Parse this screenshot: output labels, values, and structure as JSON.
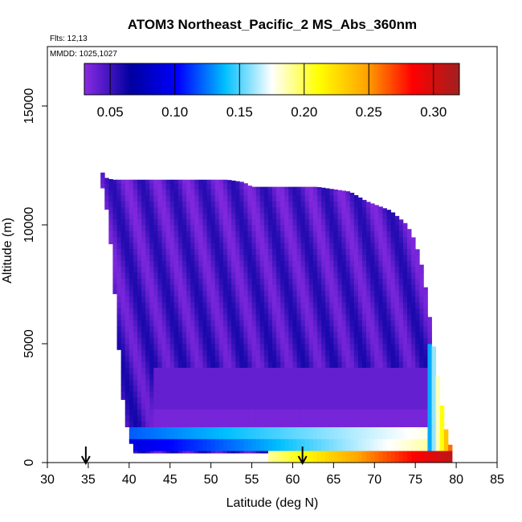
{
  "chart_data": {
    "type": "heatmap",
    "title": "ATOM3 Northeast_Pacific_2 MS_Abs_360nm",
    "notes": [
      "Flts: 12,13",
      "MMDD: 1025,1027"
    ],
    "xlabel": "Latitude (deg N)",
    "ylabel": "Altitude (m)",
    "xlim": [
      30,
      85
    ],
    "ylim": [
      0,
      17500
    ],
    "xticks": [
      "30",
      "35",
      "40",
      "45",
      "50",
      "55",
      "60",
      "65",
      "70",
      "75",
      "80",
      "85"
    ],
    "yticks": [
      "0",
      "5000",
      "10000",
      "15000"
    ],
    "colorbar": {
      "range": [
        0.03,
        0.32
      ],
      "ticks": [
        "0.05",
        "0.10",
        "0.15",
        "0.20",
        "0.25",
        "0.30"
      ],
      "colors": [
        "#8a2be2",
        "#0000a0",
        "#0000ff",
        "#00bfff",
        "#ffffff",
        "#ffff00",
        "#ffa500",
        "#ff0000",
        "#a02020"
      ]
    },
    "markers": [
      {
        "name": "arrow-1",
        "x": 34.7
      },
      {
        "name": "arrow-2",
        "x": 61.2
      }
    ],
    "curtain": {
      "lat_min": 39.5,
      "lat_max": 79.5,
      "lat_step": 0.5,
      "alt_step": 250,
      "top_profile": [
        [
          36.5,
          12400
        ],
        [
          37.0,
          12000
        ],
        [
          38.0,
          11900
        ],
        [
          43.0,
          11900
        ],
        [
          52.0,
          11900
        ],
        [
          54.0,
          11800
        ],
        [
          55.0,
          11600
        ],
        [
          63.0,
          11600
        ],
        [
          67.0,
          11400
        ],
        [
          69.0,
          11000
        ],
        [
          72.0,
          10600
        ],
        [
          74.0,
          10000
        ],
        [
          75.0,
          9300
        ],
        [
          76.0,
          8000
        ],
        [
          76.8,
          6000
        ],
        [
          77.2,
          5000
        ],
        [
          77.5,
          4300
        ],
        [
          78.0,
          3000
        ],
        [
          78.5,
          1800
        ],
        [
          79.0,
          1000
        ],
        [
          79.5,
          500
        ]
      ],
      "bottom_profile": [
        [
          36.5,
          12000
        ],
        [
          37.5,
          10200
        ],
        [
          38.0,
          8200
        ],
        [
          38.5,
          6000
        ],
        [
          39.0,
          3500
        ],
        [
          39.5,
          1800
        ],
        [
          40.0,
          1200
        ],
        [
          40.5,
          400
        ],
        [
          79.5,
          400
        ]
      ],
      "bands": [
        {
          "alt": [
            0,
            500
          ],
          "lat": [
            57.0,
            79.5
          ],
          "value_from": 0.19,
          "value_to": 0.31
        },
        {
          "alt": [
            400,
            900
          ],
          "lat": [
            40.0,
            77.0
          ],
          "value_from": 0.09,
          "value_to": 0.19
        },
        {
          "alt": [
            900,
            1400
          ],
          "lat": [
            40.0,
            77.0
          ],
          "value_from": 0.12,
          "value_to": 0.18
        },
        {
          "alt": [
            1300,
            2200
          ],
          "lat": [
            43.0,
            76.0
          ],
          "value_from": 0.035,
          "value_to": 0.035
        },
        {
          "alt": [
            2200,
            3800
          ],
          "lat": [
            43.0,
            76.0
          ],
          "value_from": 0.04,
          "value_to": 0.04
        }
      ],
      "base_value": 0.05
    }
  }
}
